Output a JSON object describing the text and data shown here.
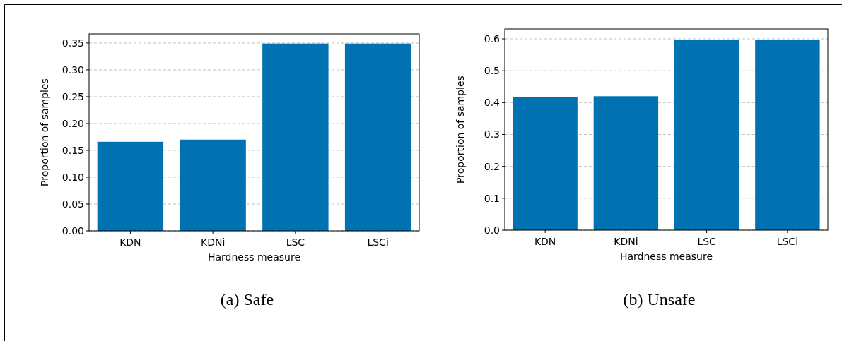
{
  "chart_data": [
    {
      "type": "bar",
      "title": "(a) Safe",
      "xlabel": "Hardness measure",
      "ylabel": "Proportion of samples",
      "categories": [
        "KDN",
        "KDNi",
        "LSC",
        "LSCi"
      ],
      "values": [
        0.166,
        0.17,
        0.349,
        0.349
      ],
      "color": "#0072b2",
      "ylim": [
        0,
        0.367
      ],
      "yticks": [
        {
          "value": 0,
          "label": "0.00"
        },
        {
          "value": 0.05,
          "label": "0.05"
        },
        {
          "value": 0.1,
          "label": "0.10"
        },
        {
          "value": 0.15,
          "label": "0.15"
        },
        {
          "value": 0.2,
          "label": "0.20"
        },
        {
          "value": 0.25,
          "label": "0.25"
        },
        {
          "value": 0.3,
          "label": "0.30"
        },
        {
          "value": 0.35,
          "label": "0.35"
        }
      ],
      "grid": "y"
    },
    {
      "type": "bar",
      "title": "(b) Unsafe",
      "xlabel": "Hardness measure",
      "ylabel": "Proportion of samples",
      "categories": [
        "KDN",
        "KDNi",
        "LSC",
        "LSCi"
      ],
      "values": [
        0.418,
        0.42,
        0.597,
        0.597
      ],
      "color": "#0072b2",
      "ylim": [
        0,
        0.631
      ],
      "yticks": [
        {
          "value": 0,
          "label": "0.0"
        },
        {
          "value": 0.1,
          "label": "0.1"
        },
        {
          "value": 0.2,
          "label": "0.2"
        },
        {
          "value": 0.3,
          "label": "0.3"
        },
        {
          "value": 0.4,
          "label": "0.4"
        },
        {
          "value": 0.5,
          "label": "0.5"
        },
        {
          "value": 0.6,
          "label": "0.6"
        }
      ],
      "grid": "y"
    }
  ]
}
